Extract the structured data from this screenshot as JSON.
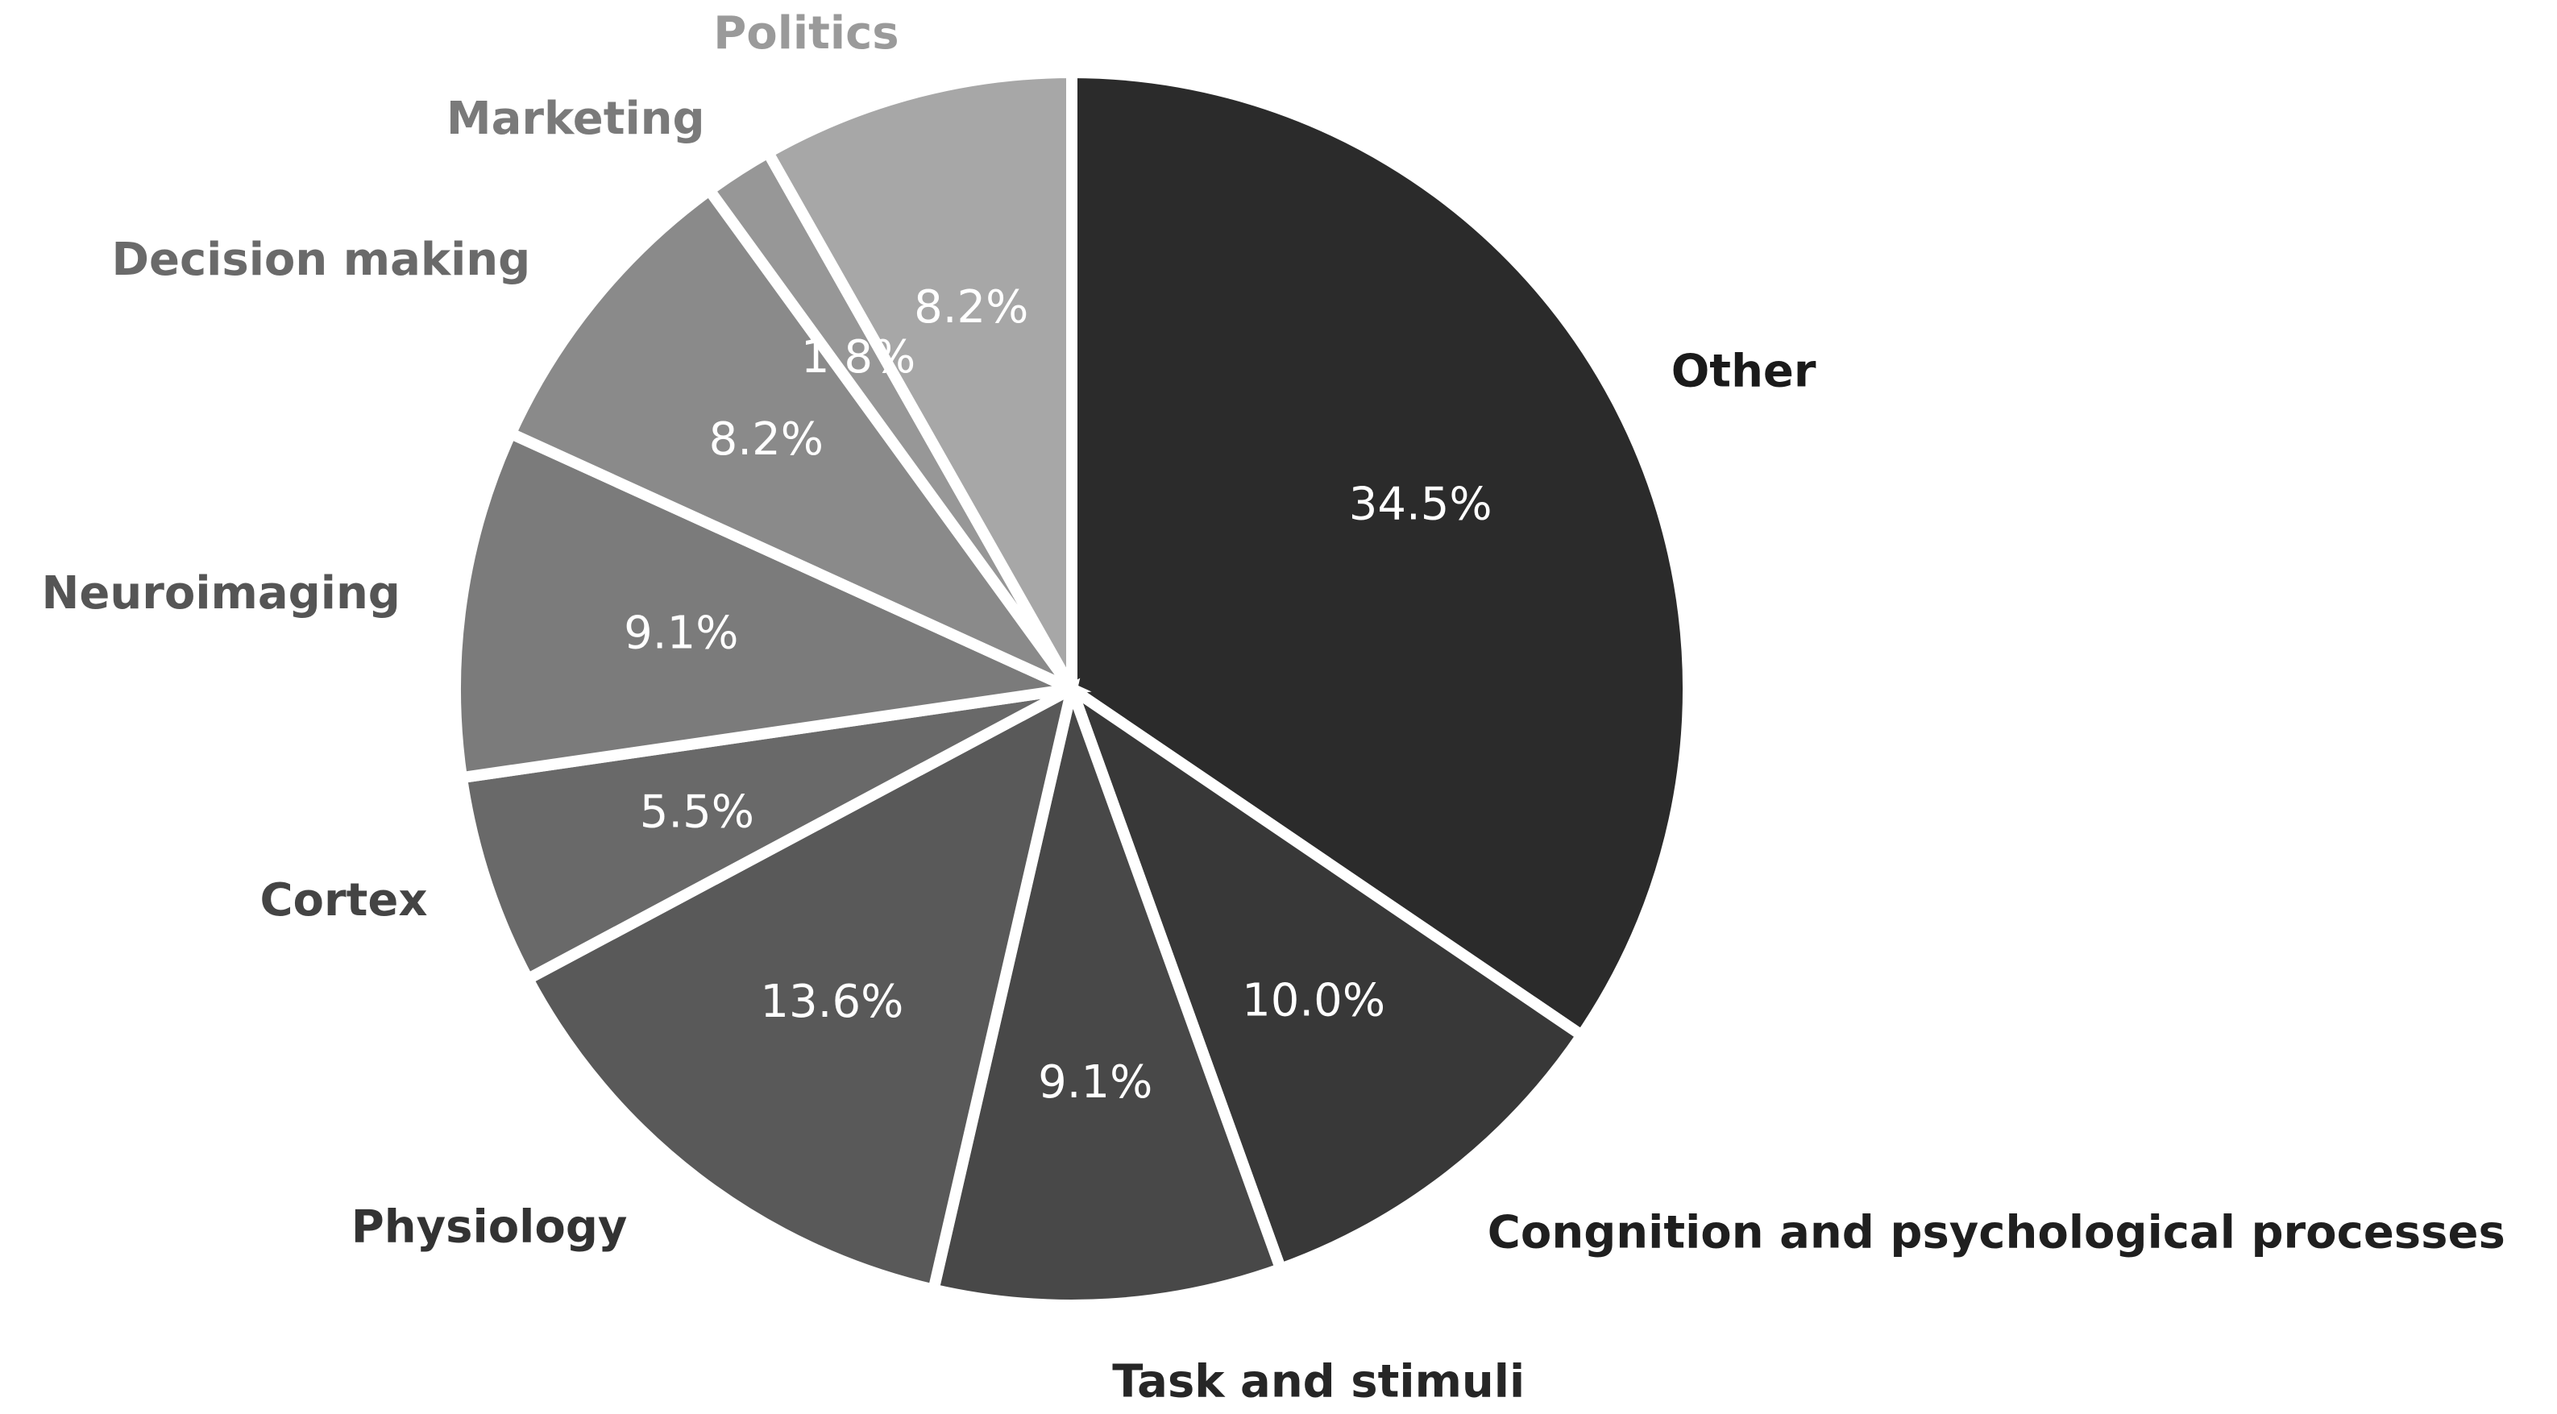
{
  "chart_data": {
    "type": "pie",
    "start_angle_deg": 90,
    "direction": "clockwise",
    "slices": [
      {
        "label": "Other",
        "value": 34.5,
        "pct_text": "34.5%",
        "color": "#2b2b2b",
        "label_color": "#1a1a1a"
      },
      {
        "label": "Congnition and psychological processes",
        "value": 10.0,
        "pct_text": "10.0%",
        "color": "#383838",
        "label_color": "#1f1f1f"
      },
      {
        "label": "Task and stimuli",
        "value": 9.1,
        "pct_text": "9.1%",
        "color": "#484848",
        "label_color": "#262626"
      },
      {
        "label": "Physiology",
        "value": 13.6,
        "pct_text": "13.6%",
        "color": "#595959",
        "label_color": "#333333"
      },
      {
        "label": "Cortex",
        "value": 5.5,
        "pct_text": "5.5%",
        "color": "#696969",
        "label_color": "#444444"
      },
      {
        "label": "Neuroimaging",
        "value": 9.1,
        "pct_text": "9.1%",
        "color": "#7b7b7b",
        "label_color": "#555555"
      },
      {
        "label": "Decision making",
        "value": 8.2,
        "pct_text": "8.2%",
        "color": "#8a8a8a",
        "label_color": "#6a6a6a"
      },
      {
        "label": "Marketing",
        "value": 1.8,
        "pct_text": "1.8%",
        "color": "#979797",
        "label_color": "#7a7a7a"
      },
      {
        "label": "Politics",
        "value": 8.2,
        "pct_text": "8.2%",
        "color": "#a7a7a7",
        "label_color": "#9a9a9a"
      }
    ]
  }
}
